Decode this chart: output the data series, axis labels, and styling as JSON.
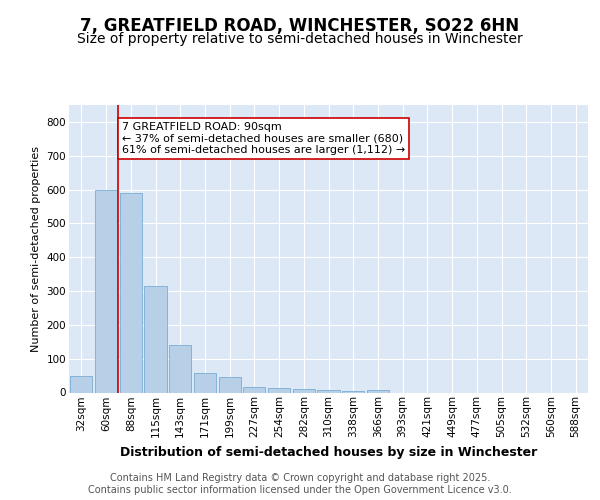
{
  "title": "7, GREATFIELD ROAD, WINCHESTER, SO22 6HN",
  "subtitle": "Size of property relative to semi-detached houses in Winchester",
  "xlabel": "Distribution of semi-detached houses by size in Winchester",
  "ylabel": "Number of semi-detached properties",
  "categories": [
    "32sqm",
    "60sqm",
    "88sqm",
    "115sqm",
    "143sqm",
    "171sqm",
    "199sqm",
    "227sqm",
    "254sqm",
    "282sqm",
    "310sqm",
    "338sqm",
    "366sqm",
    "393sqm",
    "421sqm",
    "449sqm",
    "477sqm",
    "505sqm",
    "532sqm",
    "560sqm",
    "588sqm"
  ],
  "values": [
    50,
    600,
    590,
    315,
    140,
    57,
    45,
    17,
    14,
    10,
    8,
    5,
    8,
    0,
    0,
    0,
    0,
    0,
    0,
    0,
    0
  ],
  "bar_color": "#b8cfe8",
  "bar_edge_color": "#7aadd4",
  "vline_index": 2,
  "vline_color": "#cc0000",
  "annotation_text": "7 GREATFIELD ROAD: 90sqm\n← 37% of semi-detached houses are smaller (680)\n61% of semi-detached houses are larger (1,112) →",
  "annotation_box_color": "white",
  "annotation_box_edge": "#cc0000",
  "ylim": [
    0,
    850
  ],
  "yticks": [
    0,
    100,
    200,
    300,
    400,
    500,
    600,
    700,
    800
  ],
  "footer_text": "Contains HM Land Registry data © Crown copyright and database right 2025.\nContains public sector information licensed under the Open Government Licence v3.0.",
  "fig_bg_color": "#ffffff",
  "plot_bg_color": "#dce8f5",
  "grid_color": "#ffffff",
  "title_fontsize": 12,
  "subtitle_fontsize": 10,
  "ylabel_fontsize": 8,
  "xlabel_fontsize": 9,
  "tick_fontsize": 7.5,
  "footer_fontsize": 7,
  "ann_fontsize": 8
}
